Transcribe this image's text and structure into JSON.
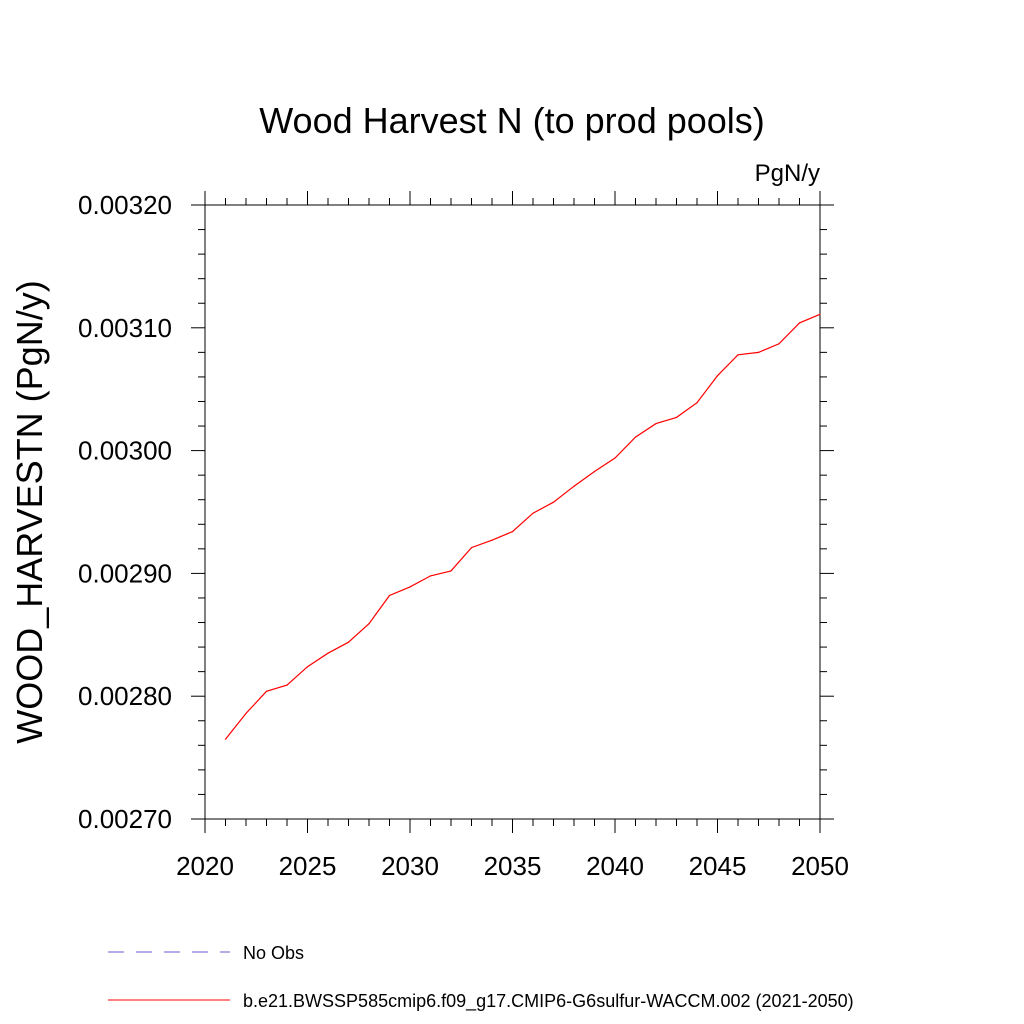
{
  "chart_data": {
    "type": "line",
    "title": "Wood Harvest N (to prod pools)",
    "units_label": "PgN/y",
    "ylabel": "WOOD_HARVESTN  (PgN/y)",
    "xlabel": "",
    "xlim": [
      2020,
      2050
    ],
    "ylim": [
      0.0027,
      0.0032
    ],
    "x_ticks": [
      2020,
      2025,
      2030,
      2035,
      2040,
      2045,
      2050
    ],
    "x_tick_labels": [
      "2020",
      "2025",
      "2030",
      "2035",
      "2040",
      "2045",
      "2050"
    ],
    "y_ticks": [
      0.0027,
      0.0028,
      0.0029,
      0.003,
      0.0031,
      0.0032
    ],
    "y_tick_labels": [
      "0.00270",
      "0.00280",
      "0.00290",
      "0.00300",
      "0.00310",
      "0.00320"
    ],
    "grid": false,
    "legend_position": "bottom",
    "series": [
      {
        "name": "b.e21.BWSSP585cmip6.f09_g17.CMIP6-G6sulfur-WACCM.002 (2021-2050)",
        "color": "#ff0000",
        "style": "solid",
        "x": [
          2021,
          2022,
          2023,
          2024,
          2025,
          2026,
          2027,
          2028,
          2029,
          2030,
          2031,
          2032,
          2033,
          2034,
          2035,
          2036,
          2037,
          2038,
          2039,
          2040,
          2041,
          2042,
          2043,
          2044,
          2045,
          2046,
          2047,
          2048,
          2049,
          2050
        ],
        "y": [
          0.002765,
          0.002786,
          0.002804,
          0.002809,
          0.002824,
          0.002835,
          0.002844,
          0.002859,
          0.002882,
          0.002889,
          0.002898,
          0.002902,
          0.002921,
          0.002927,
          0.002934,
          0.002949,
          0.002958,
          0.002971,
          0.002983,
          0.002994,
          0.003011,
          0.003022,
          0.003027,
          0.003039,
          0.003061,
          0.003078,
          0.00308,
          0.003087,
          0.003104,
          0.003111
        ]
      }
    ],
    "legend": [
      {
        "label": "No Obs",
        "color": "#6a5acd",
        "style": "dashed"
      },
      {
        "label": "b.e21.BWSSP585cmip6.f09_g17.CMIP6-G6sulfur-WACCM.002 (2021-2050)",
        "color": "#ff0000",
        "style": "solid"
      }
    ]
  }
}
